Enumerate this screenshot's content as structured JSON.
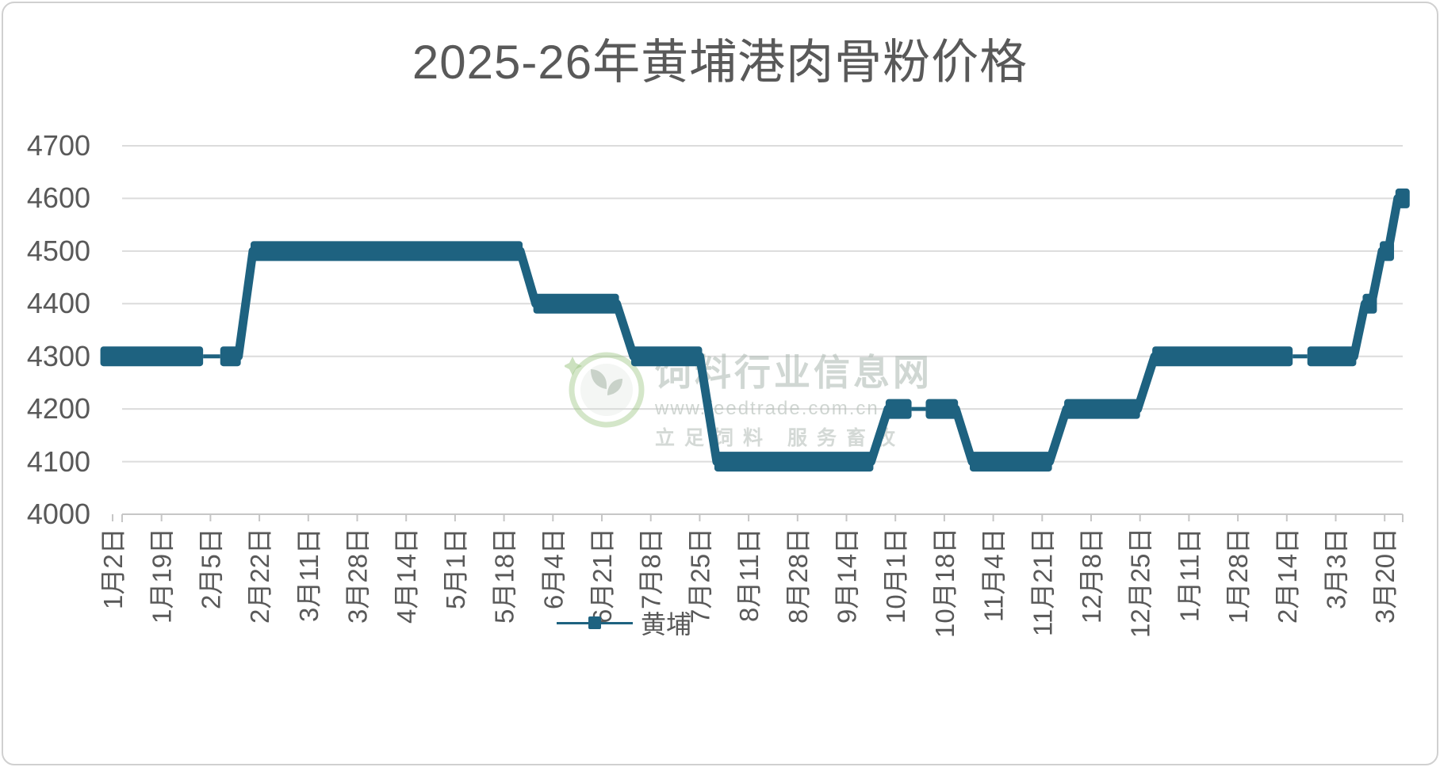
{
  "chart_data": {
    "type": "step-line",
    "title": "2025-26年黄埔港肉骨粉价格",
    "series": [
      {
        "name": "黄埔",
        "color": "#1e6280"
      }
    ],
    "ylabel": "",
    "xlabel": "",
    "ylim": [
      4000,
      4700
    ],
    "y_ticks": [
      4700,
      4600,
      4500,
      4400,
      4300,
      4200,
      4100,
      4000
    ],
    "grid": true,
    "grid_color": "#dcdcdc",
    "axis_color": "#c6c6c6",
    "text_color": "#595959",
    "legend_position": "bottom-center",
    "x_labels": [
      "1月2日",
      "1月19日",
      "2月5日",
      "2月22日",
      "3月11日",
      "3月28日",
      "4月14日",
      "5月1日",
      "5月18日",
      "6月4日",
      "6月21日",
      "7月8日",
      "7月25日",
      "8月11日",
      "8月28日",
      "9月14日",
      "10月1日",
      "10月18日",
      "11月4日",
      "11月21日",
      "12月8日",
      "12月25日",
      "1月11日",
      "1月28日",
      "2月14日",
      "3月3日",
      "3月20日"
    ],
    "values": [
      4300,
      4300,
      4300,
      4500,
      4500,
      4500,
      4500,
      4500,
      4500,
      4400,
      4400,
      4300,
      4300,
      4100,
      4100,
      4100,
      4200,
      4200,
      4100,
      4100,
      4200,
      4300,
      4300,
      4300,
      4300,
      4300,
      4600
    ],
    "latest_value": 4600,
    "segments": [
      {
        "from": -0.25,
        "to": 1.85,
        "value": 4300
      },
      {
        "from": 2.2,
        "to": 2.62,
        "value": 4300
      },
      {
        "from": 2.82,
        "to": 8.38,
        "value": 4500
      },
      {
        "from": 8.6,
        "to": 10.35,
        "value": 4400
      },
      {
        "from": 10.6,
        "to": 12.05,
        "value": 4300
      },
      {
        "from": 12.3,
        "to": 15.55,
        "value": 4100
      },
      {
        "from": 15.8,
        "to": 16.33,
        "value": 4200
      },
      {
        "from": 16.62,
        "to": 17.28,
        "value": 4200
      },
      {
        "from": 17.52,
        "to": 19.2,
        "value": 4100
      },
      {
        "from": 19.45,
        "to": 21.0,
        "value": 4200
      },
      {
        "from": 21.25,
        "to": 24.12,
        "value": 4300
      },
      {
        "from": 24.42,
        "to": 25.42,
        "value": 4300
      },
      {
        "from": 25.55,
        "to": 25.78,
        "value": 4400
      },
      {
        "from": 25.9,
        "to": 26.12,
        "value": 4500
      },
      {
        "from": 26.22,
        "to": 26.45,
        "value": 4600
      }
    ],
    "thin_links": [
      {
        "from": 1.85,
        "to": 2.2,
        "value": 4300
      },
      {
        "from": 16.33,
        "to": 16.62,
        "value": 4200
      },
      {
        "from": 24.12,
        "to": 24.42,
        "value": 4300
      }
    ]
  },
  "watermark": {
    "site_name": "饲料行业信息网",
    "url": "www.feedtrade.com.cn",
    "slogan": "立足饲料  服务畜牧",
    "logo_green": "#8fbc72"
  }
}
